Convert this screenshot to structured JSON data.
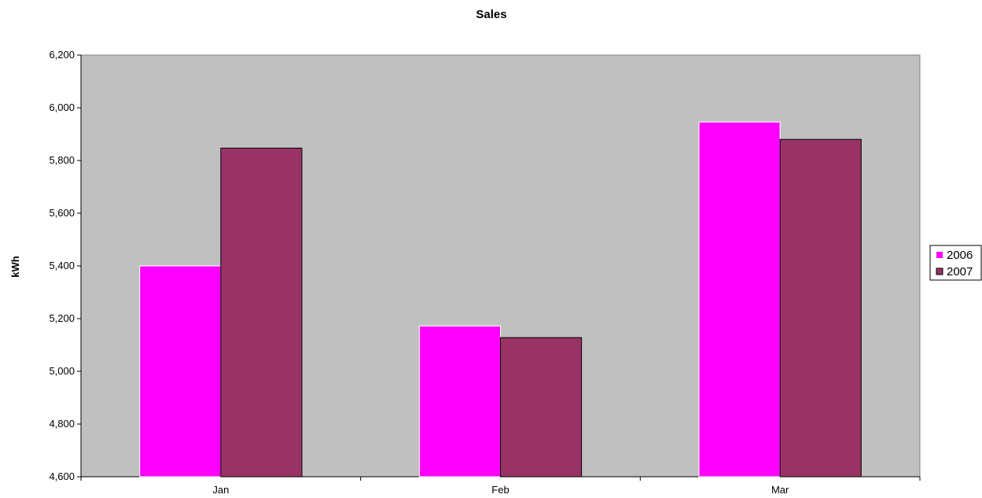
{
  "chart_data": {
    "type": "bar",
    "title": "Sales",
    "xlabel": "",
    "ylabel": "kWh",
    "categories": [
      "Jan",
      "Feb",
      "Mar"
    ],
    "series": [
      {
        "name": "2006",
        "values": [
          5400,
          5172,
          5946
        ],
        "color": "#ff00ff"
      },
      {
        "name": "2007",
        "values": [
          5847,
          5128,
          5880
        ],
        "color": "#993366"
      }
    ],
    "ylim": [
      4600,
      6200
    ],
    "yticks": [
      "4,600",
      "4,800",
      "5,000",
      "5,200",
      "5,400",
      "5,600",
      "5,800",
      "6,000",
      "6,200"
    ],
    "grid": false,
    "plot_background": "#c0c0c0",
    "legend_position": "right"
  }
}
